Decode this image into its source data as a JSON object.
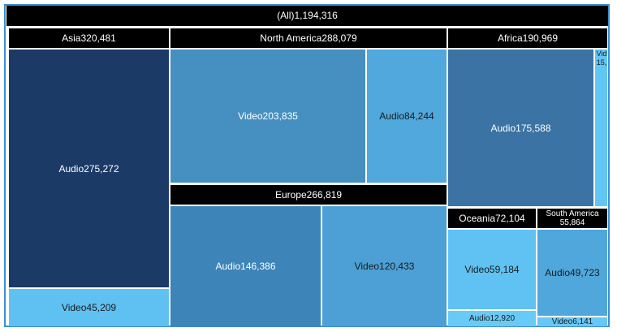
{
  "chart_data": {
    "type": "treemap",
    "root": {
      "label": "(All)",
      "value": "1,194,316"
    },
    "groups": [
      {
        "id": "asia",
        "label": "Asia",
        "value": "320,481",
        "children": [
          {
            "id": "asia-audio",
            "label": "Audio",
            "value": "275,272",
            "color": "#1b3a66"
          },
          {
            "id": "asia-video",
            "label": "Video",
            "value": "45,209",
            "color": "#5ec1f2"
          }
        ]
      },
      {
        "id": "north-america",
        "label": "North America",
        "value": "288,079",
        "children": [
          {
            "id": "north-america-video",
            "label": "Video",
            "value": "203,835",
            "color": "#4690c1"
          },
          {
            "id": "north-america-audio",
            "label": "Audio",
            "value": "84,244",
            "color": "#50a8dc"
          }
        ]
      },
      {
        "id": "europe",
        "label": "Europe",
        "value": "266,819",
        "children": [
          {
            "id": "europe-audio",
            "label": "Audio",
            "value": "146,386",
            "color": "#3d84b8"
          },
          {
            "id": "europe-video",
            "label": "Video",
            "value": "120,433",
            "color": "#4ca0d5"
          }
        ]
      },
      {
        "id": "africa",
        "label": "Africa",
        "value": "190,969",
        "children": [
          {
            "id": "africa-audio",
            "label": "Audio",
            "value": "175,588",
            "color": "#3a73a4"
          },
          {
            "id": "africa-video",
            "label": "Vid",
            "value": "15,",
            "color": "#62c6f5"
          }
        ]
      },
      {
        "id": "oceania",
        "label": "Oceania",
        "value": "72,104",
        "children": [
          {
            "id": "oceania-video",
            "label": "Video",
            "value": "59,184",
            "color": "#5fc2f3"
          },
          {
            "id": "oceania-audio",
            "label": "Audio",
            "value": "12,920",
            "color": "#68caf6"
          }
        ]
      },
      {
        "id": "south-america",
        "label": "South America",
        "value": "55,864",
        "children": [
          {
            "id": "south-america-audio",
            "label": "Audio",
            "value": "49,723",
            "color": "#4fa7dc"
          },
          {
            "id": "south-america-video",
            "label": "Video",
            "value": "6,141",
            "color": "#66c8f6"
          }
        ]
      }
    ]
  }
}
